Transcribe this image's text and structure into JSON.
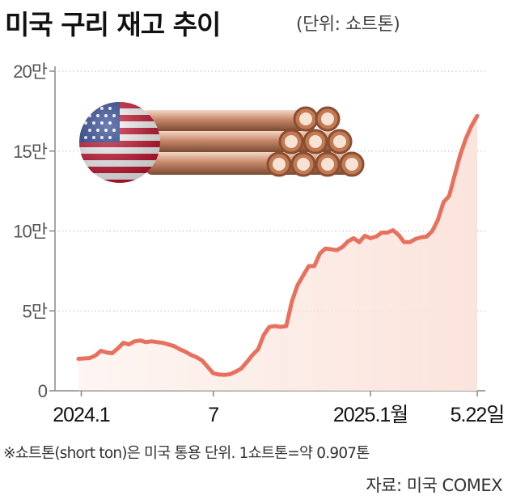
{
  "header": {
    "title": "미국 구리 재고 추이",
    "unit": "(단위: 쇼트톤)"
  },
  "footer": {
    "note": "※쇼트톤(short ton)은 미국 통용 단위. 1쇼트톤=약 0.907톤",
    "source": "자료: 미국 COMEX"
  },
  "colors": {
    "line": "#e8705f",
    "fill": "#fbe4dc",
    "grid": "#bbbbbb"
  },
  "chart_data": {
    "type": "area",
    "title": "미국 구리 재고 추이",
    "ylabel": "(단위: 쇼트톤)",
    "ylim": [
      0,
      200000
    ],
    "y_ticks": [
      {
        "value": 0,
        "label": "0"
      },
      {
        "value": 50000,
        "label": "5만"
      },
      {
        "value": 100000,
        "label": "10만"
      },
      {
        "value": 150000,
        "label": "15만"
      },
      {
        "value": 200000,
        "label": "20만"
      }
    ],
    "x_ticks": [
      {
        "x": 0.5,
        "label": "2024.1"
      },
      {
        "x": 24,
        "label": "7"
      },
      {
        "x": 52,
        "label": "2025.1월"
      },
      {
        "x": 71,
        "label": "5.22일"
      }
    ],
    "x_range": [
      0,
      71
    ],
    "series": [
      {
        "values": [
          [
            0,
            20000
          ],
          [
            2,
            20500
          ],
          [
            3,
            22000
          ],
          [
            4,
            25000
          ],
          [
            5,
            24000
          ],
          [
            6,
            23500
          ],
          [
            7,
            26500
          ],
          [
            8,
            30000
          ],
          [
            9,
            29000
          ],
          [
            10,
            31000
          ],
          [
            11,
            31500
          ],
          [
            12,
            30500
          ],
          [
            13,
            31000
          ],
          [
            14,
            30500
          ],
          [
            15,
            30000
          ],
          [
            16,
            29000
          ],
          [
            17,
            28000
          ],
          [
            18,
            26000
          ],
          [
            19,
            24500
          ],
          [
            20,
            22500
          ],
          [
            21,
            21000
          ],
          [
            22,
            19000
          ],
          [
            23,
            15000
          ],
          [
            24,
            11000
          ],
          [
            25,
            10200
          ],
          [
            26,
            10000
          ],
          [
            27,
            10400
          ],
          [
            28,
            12000
          ],
          [
            29,
            14000
          ],
          [
            30,
            18000
          ],
          [
            31,
            22500
          ],
          [
            32,
            26000
          ],
          [
            33,
            35000
          ],
          [
            34,
            40000
          ],
          [
            35,
            40500
          ],
          [
            36,
            40000
          ],
          [
            37,
            40500
          ],
          [
            38,
            56000
          ],
          [
            39,
            66000
          ],
          [
            40,
            72000
          ],
          [
            41,
            78000
          ],
          [
            42,
            78000
          ],
          [
            43,
            86000
          ],
          [
            44,
            89000
          ],
          [
            45,
            88500
          ],
          [
            46,
            88000
          ],
          [
            47,
            90000
          ],
          [
            48,
            93500
          ],
          [
            49,
            95500
          ],
          [
            50,
            93000
          ],
          [
            51,
            97000
          ],
          [
            52,
            95500
          ],
          [
            53,
            96500
          ],
          [
            54,
            99000
          ],
          [
            55,
            99000
          ],
          [
            56,
            100500
          ],
          [
            57,
            97500
          ],
          [
            58,
            93000
          ],
          [
            59,
            93000
          ],
          [
            60,
            95000
          ],
          [
            61,
            96000
          ],
          [
            62,
            96500
          ],
          [
            63,
            100000
          ],
          [
            64,
            107000
          ],
          [
            65,
            118000
          ],
          [
            66,
            122000
          ],
          [
            67,
            135000
          ],
          [
            68,
            148000
          ],
          [
            69,
            158000
          ],
          [
            70,
            166000
          ],
          [
            71,
            172000
          ]
        ]
      }
    ]
  }
}
